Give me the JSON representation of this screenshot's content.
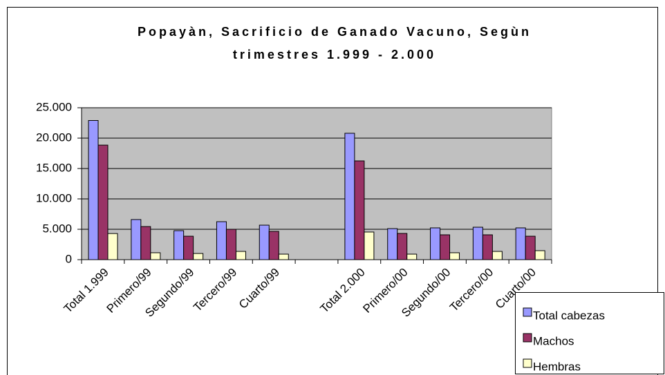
{
  "chart_data": {
    "type": "bar",
    "title": [
      "Popayàn, Sacrificio de Ganado Vacuno, Segùn",
      "trimestres 1.999 - 2.000"
    ],
    "categories": [
      "Total 1.999",
      "Primero/99",
      "Segundo/99",
      "Tercero/99",
      "Cuarto/99",
      null,
      "Total 2.000",
      "Primero/00",
      "Segundo/00",
      "Tercero/00",
      "Cuarto/00"
    ],
    "series": [
      {
        "name": "Total cabezas",
        "color": "#9999ff",
        "values": [
          22900,
          6600,
          4770,
          6250,
          5680,
          null,
          20800,
          5110,
          5230,
          5340,
          5230
        ]
      },
      {
        "name": "Machos",
        "color": "#993366",
        "values": [
          18850,
          5450,
          3860,
          5000,
          4660,
          null,
          16250,
          4320,
          4090,
          4090,
          3860
        ]
      },
      {
        "name": "Hembras",
        "color": "#ffffcc",
        "values": [
          4300,
          1140,
          1020,
          1360,
          910,
          null,
          4550,
          910,
          1140,
          1360,
          1480
        ]
      }
    ],
    "ylim": [
      0,
      25000
    ],
    "yticks": [
      0,
      {
        "value": 5000,
        "label": "5.000"
      },
      {
        "value": 10000,
        "label": "10.000"
      },
      {
        "value": 15000,
        "label": "15.000"
      },
      {
        "value": 20000,
        "label": "20.000"
      },
      {
        "value": 25000,
        "label": "25.000"
      }
    ],
    "grid": true,
    "plot_background": "#c0c0c0",
    "legend": "bottom-right"
  }
}
